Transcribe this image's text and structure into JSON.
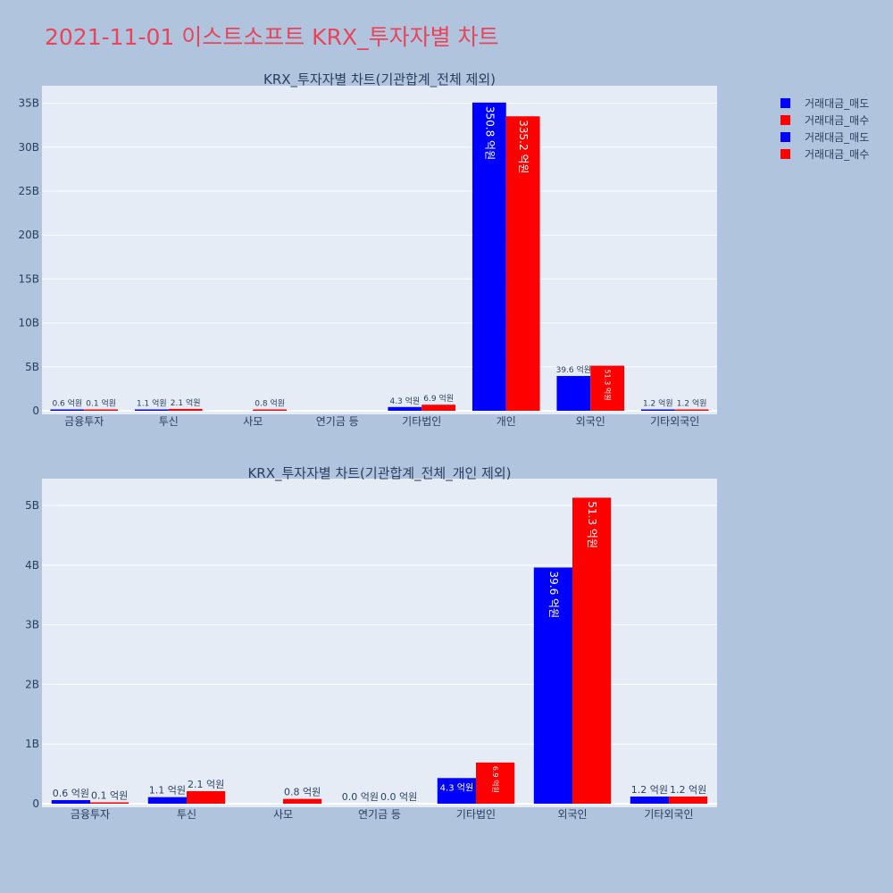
{
  "title": "2021-11-01 이스트소프트 KRX_투자자별 차트",
  "legend": [
    {
      "label": "거래대금_매도",
      "color": "#0000ff"
    },
    {
      "label": "거래대금_매수",
      "color": "#ff0000"
    },
    {
      "label": "거래대금_매도",
      "color": "#0000ff"
    },
    {
      "label": "거래대금_매수",
      "color": "#ff0000"
    }
  ],
  "chart_data": [
    {
      "type": "bar",
      "title": "KRX_투자자별 차트(기관합계_전체 제외)",
      "categories": [
        "금융투자",
        "투신",
        "사모",
        "연기금 등",
        "기타법인",
        "개인",
        "외국인",
        "기타외국인"
      ],
      "series": [
        {
          "name": "거래대금_매도",
          "color": "#0000ff",
          "values": [
            0.06,
            0.11,
            0,
            0,
            0.43,
            35.08,
            3.96,
            0.12
          ],
          "labels": [
            "0.6 억원",
            "1.1 억원",
            "",
            "",
            "4.3 억원",
            "350.8 억원",
            "39.6 억원",
            "1.2 억원"
          ]
        },
        {
          "name": "거래대금_매수",
          "color": "#ff0000",
          "values": [
            0.01,
            0.21,
            0.08,
            0,
            0.69,
            33.52,
            5.13,
            0.12
          ],
          "labels": [
            "0.1 억원",
            "2.1 억원",
            "0.8 억원",
            "",
            "6.9 억원",
            "335.2 억원",
            "51.3 억원",
            "1.2 억원"
          ]
        }
      ],
      "ylim": [
        0,
        37
      ],
      "yticks": [
        0,
        5,
        10,
        15,
        20,
        25,
        30,
        35
      ],
      "ytick_labels": [
        "0",
        "5B",
        "10B",
        "15B",
        "20B",
        "25B",
        "30B",
        "35B"
      ],
      "grid": true
    },
    {
      "type": "bar",
      "title": "KRX_투자자별 차트(기관합계_전체_개인 제외)",
      "categories": [
        "금융투자",
        "투신",
        "사모",
        "연기금 등",
        "기타법인",
        "외국인",
        "기타외국인"
      ],
      "series": [
        {
          "name": "거래대금_매도",
          "color": "#0000ff",
          "values": [
            0.06,
            0.11,
            0,
            0,
            0.43,
            3.96,
            0.12
          ],
          "labels": [
            "0.6 억원",
            "1.1 억원",
            "",
            "0.0 억원",
            "4.3 억원",
            "39.6 억원",
            "1.2 억원"
          ]
        },
        {
          "name": "거래대금_매수",
          "color": "#ff0000",
          "values": [
            0.01,
            0.21,
            0.08,
            0,
            0.69,
            5.13,
            0.12
          ],
          "labels": [
            "0.1 억원",
            "2.1 억원",
            "0.8 억원",
            "0.0 억원",
            "6.9 억원",
            "51.3 억원",
            "1.2 억원"
          ]
        }
      ],
      "ylim": [
        0,
        5.45
      ],
      "yticks": [
        0,
        1,
        2,
        3,
        4,
        5
      ],
      "ytick_labels": [
        "0",
        "1B",
        "2B",
        "3B",
        "4B",
        "5B"
      ],
      "grid": true
    }
  ]
}
